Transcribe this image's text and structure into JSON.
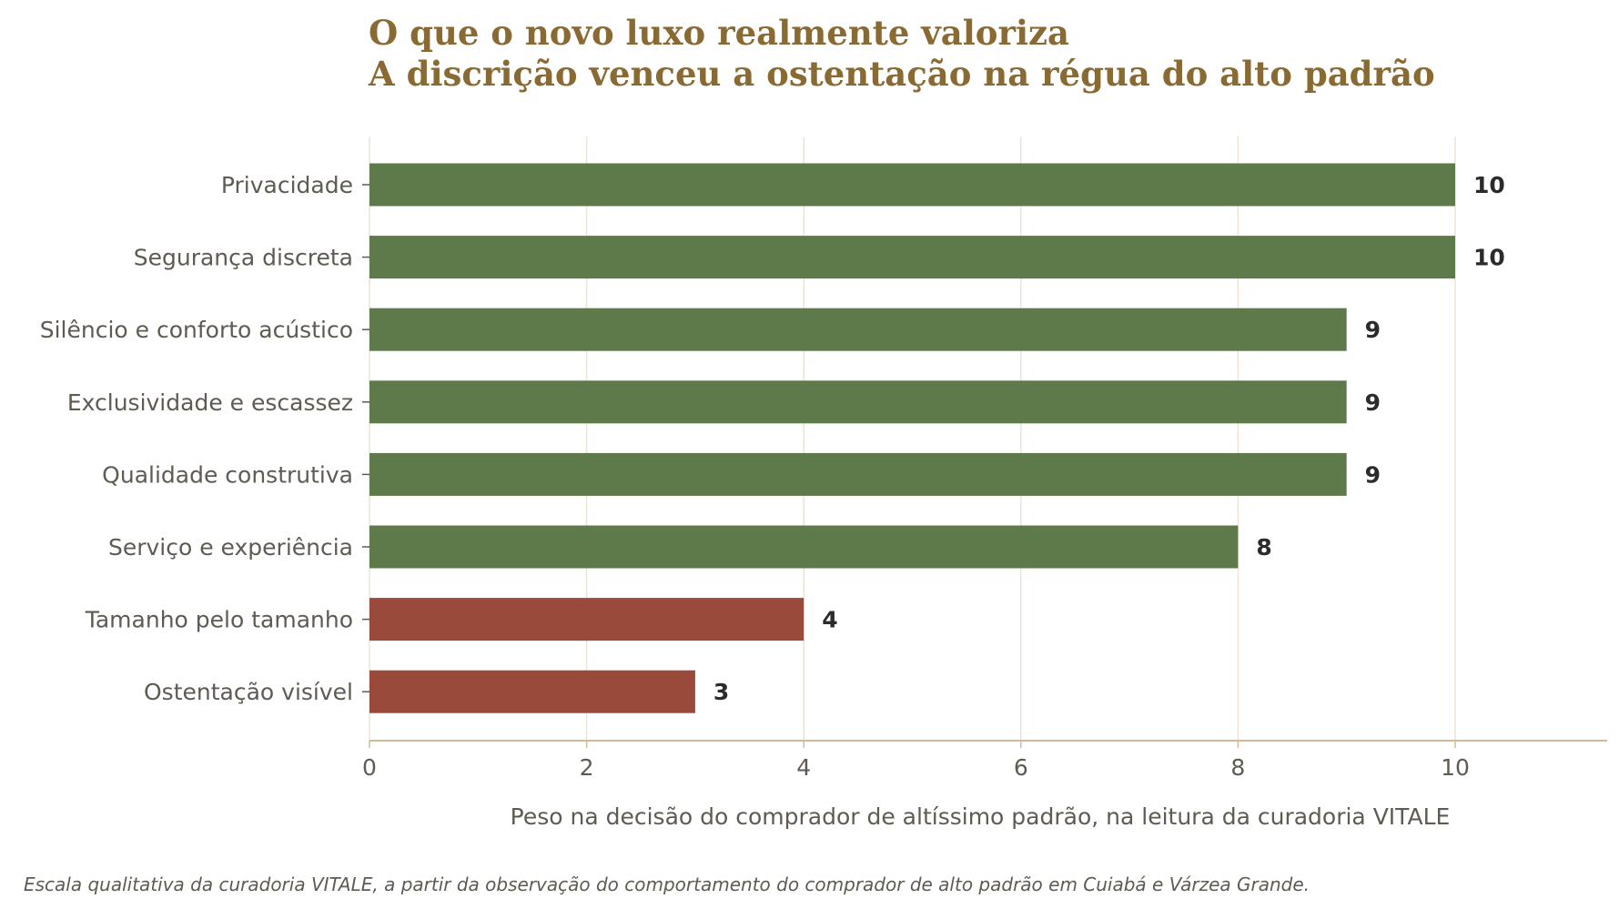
{
  "colors": {
    "positive": "#5e7a4a",
    "negative": "#9a4a3b",
    "title": "#8a6a33",
    "grid": "#ece4d6",
    "axis": "#cdbb9b"
  },
  "chart_data": {
    "type": "bar",
    "orientation": "horizontal",
    "title": "O que o novo luxo realmente valoriza",
    "subtitle": "A discrição venceu a ostentação na régua do alto padrão",
    "xlabel": "Peso na decisão do comprador de altíssimo padrão, na leitura da curadoria VITALE",
    "ylabel": "",
    "xlim": [
      0,
      11.4
    ],
    "xticks": [
      0,
      2,
      4,
      6,
      8,
      10
    ],
    "grid": "vertical",
    "categories": [
      "Privacidade",
      "Segurança discreta",
      "Silêncio e conforto acústico",
      "Exclusividade e escassez",
      "Qualidade construtiva",
      "Serviço e experiência",
      "Tamanho pelo tamanho",
      "Ostentação visível"
    ],
    "values": [
      10,
      10,
      9,
      9,
      9,
      8,
      4,
      3
    ],
    "bar_colors": [
      "positive",
      "positive",
      "positive",
      "positive",
      "positive",
      "positive",
      "negative",
      "negative"
    ]
  },
  "footnote": "Escala qualitativa da curadoria VITALE, a partir da observação do comportamento do comprador de alto padrão em Cuiabá e Várzea Grande."
}
